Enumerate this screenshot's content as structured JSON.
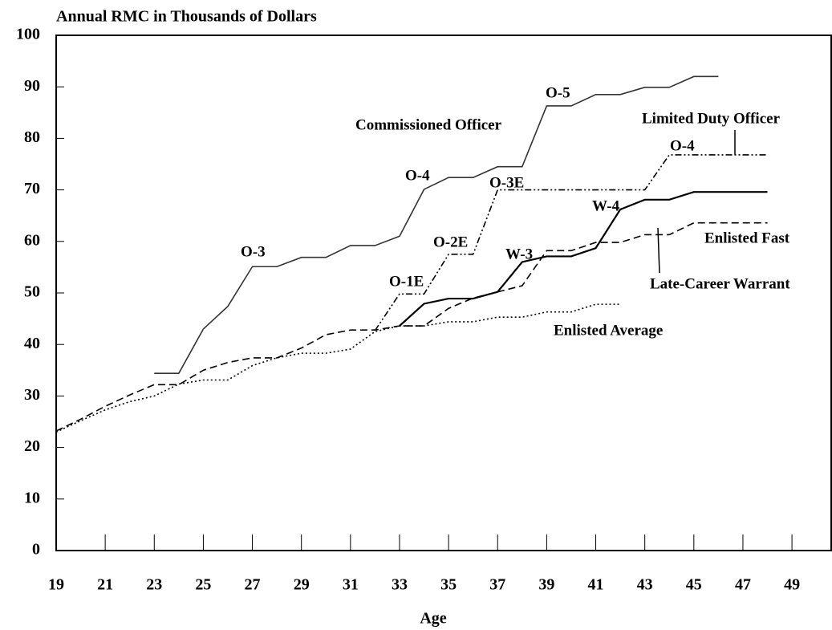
{
  "chart_data": {
    "type": "line",
    "title": "Annual RMC in Thousands of Dollars",
    "x_label": "Age",
    "xlim": [
      19,
      50.6
    ],
    "xticks": [
      19,
      21,
      23,
      25,
      27,
      29,
      31,
      33,
      35,
      37,
      39,
      41,
      43,
      45,
      47,
      49
    ],
    "ylim": [
      0,
      100
    ],
    "yticks": [
      0,
      10,
      20,
      30,
      40,
      50,
      60,
      70,
      80,
      90,
      100
    ],
    "grid": false,
    "series": [
      {
        "name": "Commissioned Officer",
        "color": "#333333",
        "style": "solid",
        "x": [
          23,
          24,
          25,
          26,
          27,
          28,
          29,
          30,
          31,
          32,
          33,
          34,
          35,
          36,
          37,
          38,
          39,
          40,
          41,
          42,
          43,
          44,
          45,
          46
        ],
        "values": [
          34.4,
          34.4,
          43,
          47.4,
          55.1,
          55.1,
          56.9,
          56.9,
          59.2,
          59.2,
          61,
          70.1,
          72.4,
          72.4,
          74.5,
          74.5,
          86.3,
          86.3,
          88.5,
          88.5,
          89.9,
          89.9,
          92,
          92
        ]
      },
      {
        "name": "Limited Duty Officer",
        "color": "#000000",
        "style": "dashdotdot",
        "x": [
          32,
          33,
          34,
          35,
          36,
          37,
          38,
          39,
          40,
          41,
          42,
          43,
          44,
          45,
          46,
          47,
          48
        ],
        "values": [
          42.7,
          49.8,
          49.8,
          57.5,
          57.5,
          70,
          70,
          70,
          70,
          70,
          70,
          70,
          76.8,
          76.8,
          76.8,
          76.8,
          76.8
        ]
      },
      {
        "name": "Enlisted Fast",
        "color": "#000000",
        "style": "dashed",
        "x": [
          19,
          20,
          21,
          22,
          23,
          24,
          25,
          26,
          27,
          28,
          29,
          30,
          31,
          32,
          33,
          34,
          35,
          36,
          37,
          38,
          39,
          40,
          41,
          42,
          43,
          44,
          45,
          46,
          47,
          48
        ],
        "values": [
          23.2,
          25.5,
          28,
          30.2,
          32.2,
          32.2,
          35,
          36.5,
          37.4,
          37.4,
          39.3,
          41.9,
          42.8,
          42.8,
          43.6,
          43.6,
          47,
          49,
          50.2,
          51.4,
          58.2,
          58.2,
          59.8,
          59.8,
          61.3,
          61.3,
          63.6,
          63.6,
          63.6,
          63.6
        ]
      },
      {
        "name": "Late-Career Warrant",
        "color": "#000000",
        "style": "solid",
        "x": [
          33,
          34,
          35,
          36,
          37,
          38,
          39,
          40,
          41,
          42,
          43,
          44,
          45,
          46,
          47,
          48
        ],
        "values": [
          43.6,
          47.9,
          48.9,
          48.9,
          50.2,
          56,
          57.1,
          57.1,
          58.7,
          66.2,
          68.1,
          68.1,
          69.6,
          69.6,
          69.6,
          69.6
        ]
      },
      {
        "name": "Enlisted Average",
        "color": "#000000",
        "style": "dotted",
        "x": [
          19,
          20,
          21,
          22,
          23,
          24,
          25,
          26,
          27,
          28,
          29,
          30,
          31,
          32,
          33,
          34,
          35,
          36,
          37,
          38,
          39,
          40,
          41,
          42
        ],
        "values": [
          23,
          25.2,
          27.3,
          28.9,
          30,
          32.3,
          33.1,
          33.1,
          35.9,
          37.4,
          38.3,
          38.3,
          39.1,
          42.5,
          43.6,
          43.6,
          44.4,
          44.4,
          45.3,
          45.3,
          46.3,
          46.3,
          47.8,
          47.8
        ]
      }
    ],
    "annotations": [
      "O-3",
      "O-4",
      "O-5",
      "O-3E",
      "O-2E",
      "O-1E",
      "O-4",
      "W-3",
      "W-4"
    ]
  }
}
